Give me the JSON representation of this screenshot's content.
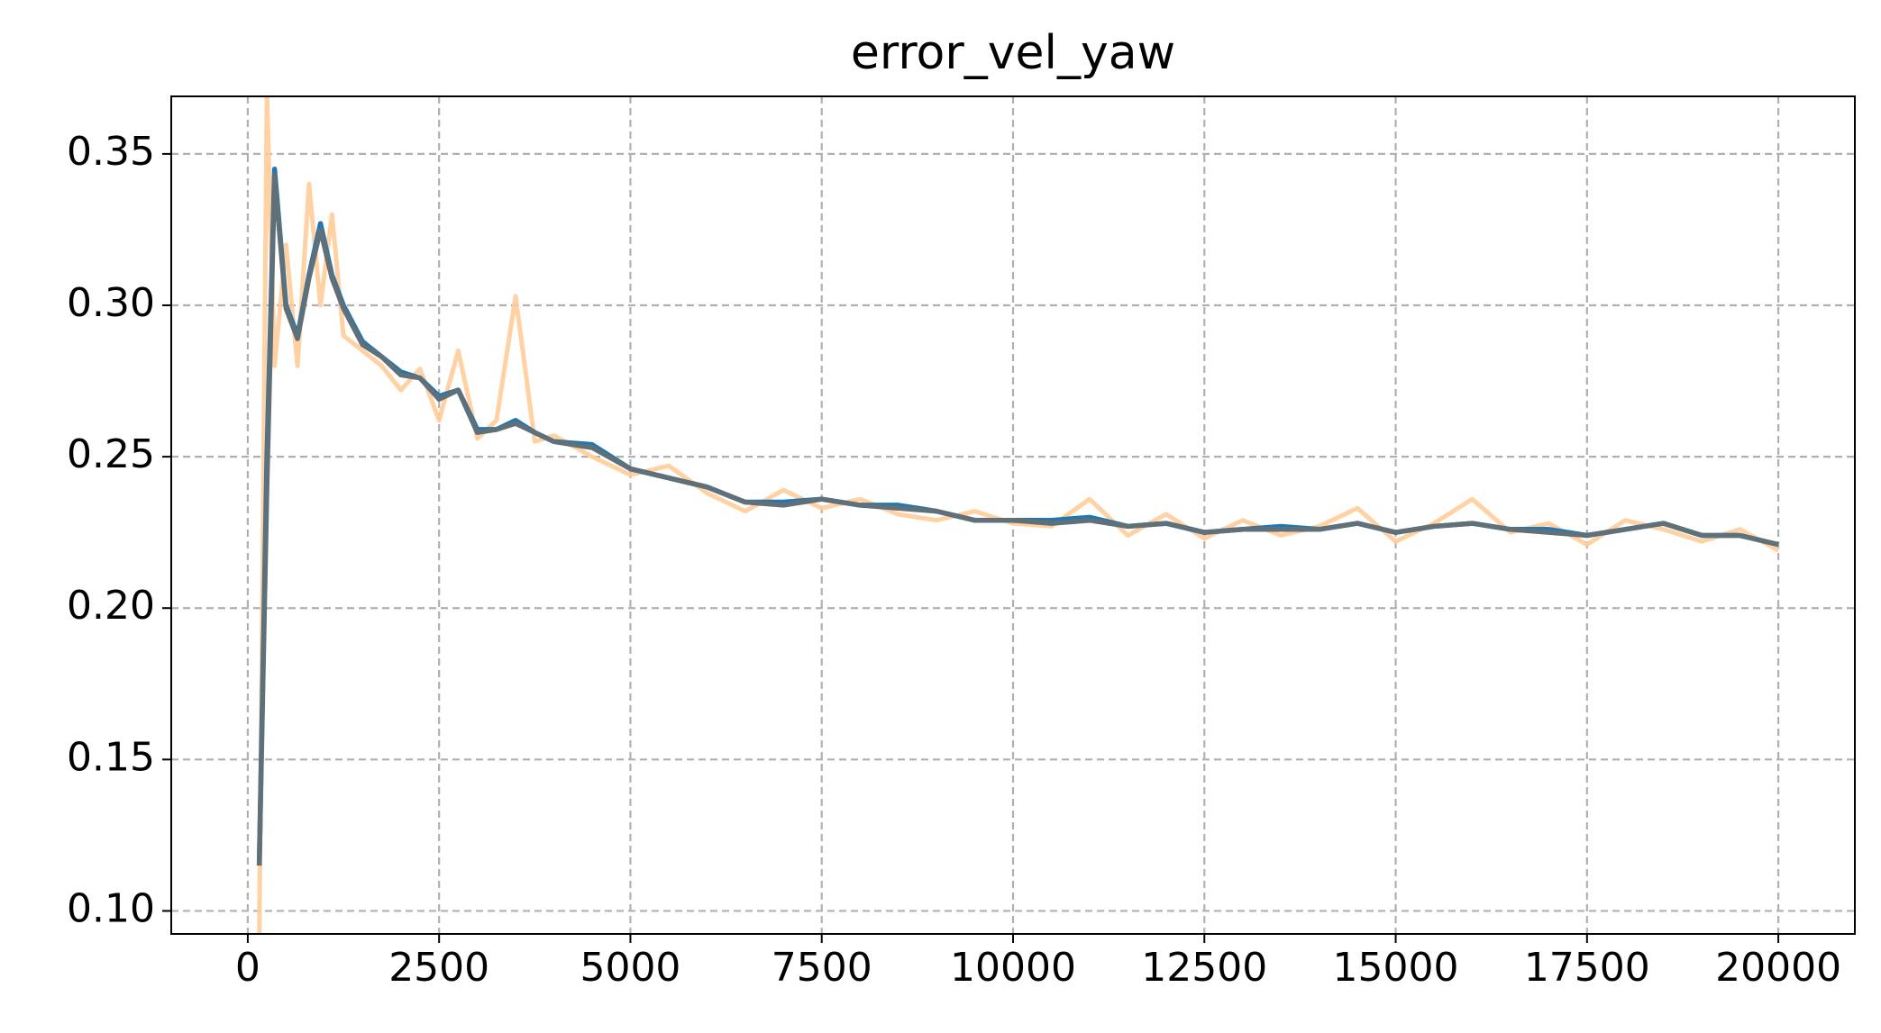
{
  "chart_data": {
    "type": "line",
    "title": "error_vel_yaw",
    "x": [
      150,
      250,
      350,
      500,
      650,
      800,
      950,
      1100,
      1250,
      1500,
      1750,
      2000,
      2250,
      2500,
      2750,
      3000,
      3250,
      3500,
      3750,
      4000,
      4500,
      5000,
      5500,
      6000,
      6500,
      7000,
      7500,
      8000,
      8500,
      9000,
      9500,
      10000,
      10500,
      11000,
      11500,
      12000,
      12500,
      13000,
      13500,
      14000,
      14500,
      15000,
      15500,
      16000,
      16500,
      17000,
      17500,
      18000,
      18500,
      19000,
      19500,
      20000
    ],
    "series": [
      {
        "color": "#ffcc99",
        "values": [
          0.09,
          0.37,
          0.28,
          0.32,
          0.28,
          0.34,
          0.3,
          0.33,
          0.29,
          0.285,
          0.28,
          0.272,
          0.279,
          0.262,
          0.285,
          0.256,
          0.262,
          0.303,
          0.255,
          0.257,
          0.25,
          0.244,
          0.247,
          0.238,
          0.232,
          0.239,
          0.233,
          0.236,
          0.231,
          0.229,
          0.232,
          0.228,
          0.227,
          0.236,
          0.224,
          0.231,
          0.223,
          0.229,
          0.224,
          0.227,
          0.233,
          0.222,
          0.228,
          0.236,
          0.225,
          0.228,
          0.221,
          0.229,
          0.226,
          0.222,
          0.226,
          0.219
        ]
      },
      {
        "color": "#1f77b4",
        "values": [
          0.115,
          0.25,
          0.345,
          0.3,
          0.29,
          0.31,
          0.327,
          0.31,
          0.3,
          0.288,
          0.283,
          0.278,
          0.276,
          0.27,
          0.272,
          0.259,
          0.259,
          0.262,
          0.258,
          0.255,
          0.254,
          0.246,
          0.243,
          0.24,
          0.235,
          0.235,
          0.236,
          0.234,
          0.234,
          0.232,
          0.229,
          0.229,
          0.229,
          0.23,
          0.227,
          0.228,
          0.225,
          0.226,
          0.227,
          0.226,
          0.228,
          0.225,
          0.227,
          0.228,
          0.226,
          0.226,
          0.224,
          0.226,
          0.228,
          0.224,
          0.224,
          0.221
        ]
      },
      {
        "color": "#5f7079",
        "values": [
          0.115,
          0.24,
          0.343,
          0.299,
          0.289,
          0.309,
          0.325,
          0.309,
          0.299,
          0.287,
          0.283,
          0.277,
          0.276,
          0.269,
          0.272,
          0.258,
          0.259,
          0.261,
          0.258,
          0.255,
          0.253,
          0.246,
          0.243,
          0.24,
          0.235,
          0.234,
          0.236,
          0.234,
          0.233,
          0.232,
          0.229,
          0.229,
          0.228,
          0.229,
          0.227,
          0.228,
          0.225,
          0.226,
          0.226,
          0.226,
          0.228,
          0.225,
          0.227,
          0.228,
          0.226,
          0.225,
          0.224,
          0.226,
          0.228,
          0.224,
          0.224,
          0.221
        ]
      }
    ],
    "xlim": [
      -1000,
      21000
    ],
    "xticks": [
      0,
      2500,
      5000,
      7500,
      10000,
      12500,
      15000,
      17500,
      20000
    ],
    "ylim": [
      0.0924,
      0.369
    ],
    "yticks": [
      {
        "value": 0.1,
        "label": "0.10"
      },
      0.15,
      {
        "value": 0.2,
        "label": "0.20"
      },
      0.25,
      {
        "value": 0.3,
        "label": "0.30"
      },
      0.35
    ],
    "grid": true
  }
}
